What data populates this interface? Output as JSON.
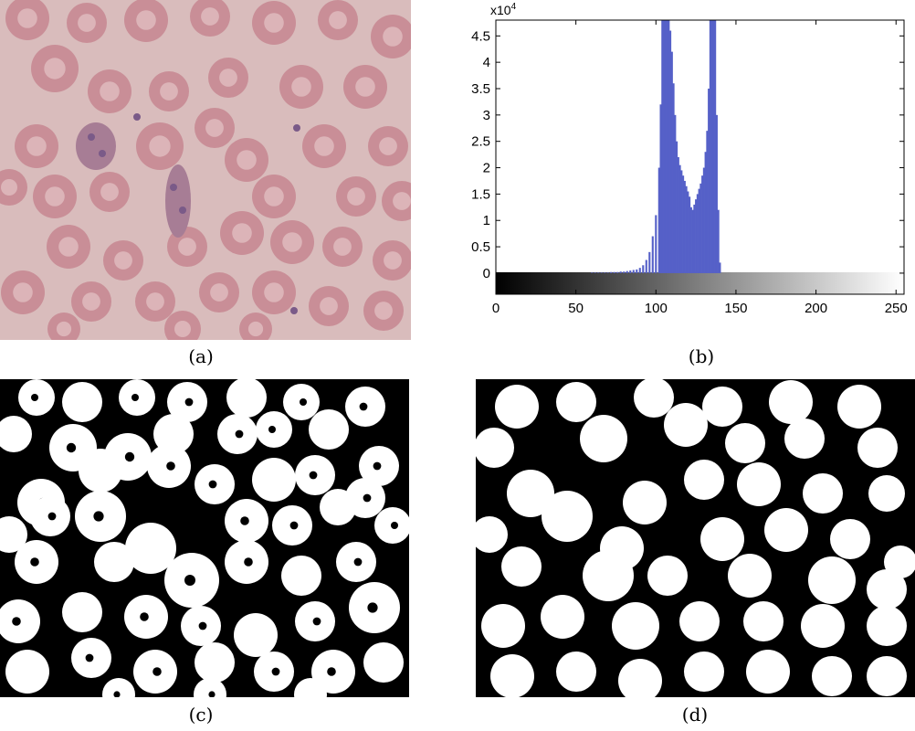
{
  "figure": {
    "captions": {
      "a": "(a)",
      "b": "(b)",
      "c": "(c)",
      "d": "(d)"
    },
    "colors": {
      "micro_background": "#d9bcbc",
      "cell_fill": "#c98e97",
      "cell_center": "#dcb4b8",
      "parasite": "#7a5a88",
      "histogram_bar": "#5560c8",
      "mask_black": "#000000",
      "mask_white": "#ffffff"
    }
  },
  "chart_data": {
    "type": "bar",
    "xlim": [
      0,
      255
    ],
    "ylim": [
      -0.4,
      4.8
    ],
    "x_ticks": [
      0,
      50,
      100,
      150,
      200,
      250
    ],
    "y_ticks": [
      0,
      0.5,
      1,
      1.5,
      2,
      2.5,
      3,
      3.5,
      4,
      4.5
    ],
    "y_tick_labels": [
      "0",
      "0.5",
      "1",
      "1.5",
      "2",
      "2.5",
      "3",
      "3.5",
      "4",
      "4.5"
    ],
    "y_multiplier": "x10",
    "y_multiplier_exp": "4",
    "x": [
      60,
      62,
      64,
      66,
      68,
      70,
      72,
      74,
      76,
      78,
      80,
      82,
      84,
      86,
      88,
      90,
      92,
      94,
      96,
      98,
      100,
      102,
      103,
      104,
      105,
      106,
      107,
      108,
      109,
      110,
      111,
      112,
      113,
      114,
      115,
      116,
      117,
      118,
      119,
      120,
      121,
      122,
      123,
      124,
      125,
      126,
      127,
      128,
      129,
      130,
      131,
      132,
      133,
      134,
      135,
      136,
      137,
      138,
      139,
      140
    ],
    "values": [
      0.01,
      0.01,
      0.01,
      0.01,
      0.01,
      0.01,
      0.02,
      0.02,
      0.02,
      0.03,
      0.03,
      0.04,
      0.05,
      0.06,
      0.07,
      0.1,
      0.15,
      0.25,
      0.4,
      0.7,
      1.1,
      2.0,
      3.2,
      4.8,
      4.8,
      4.8,
      4.8,
      4.8,
      4.6,
      4.2,
      3.6,
      3.0,
      2.5,
      2.2,
      2.05,
      1.95,
      1.85,
      1.75,
      1.65,
      1.55,
      1.45,
      1.25,
      1.2,
      1.3,
      1.4,
      1.5,
      1.6,
      1.7,
      1.85,
      2.0,
      2.3,
      2.7,
      3.5,
      4.8,
      4.8,
      4.8,
      4.8,
      3.0,
      1.2,
      0.2
    ],
    "colorbar": "grayscale 0-255",
    "grid": false
  }
}
